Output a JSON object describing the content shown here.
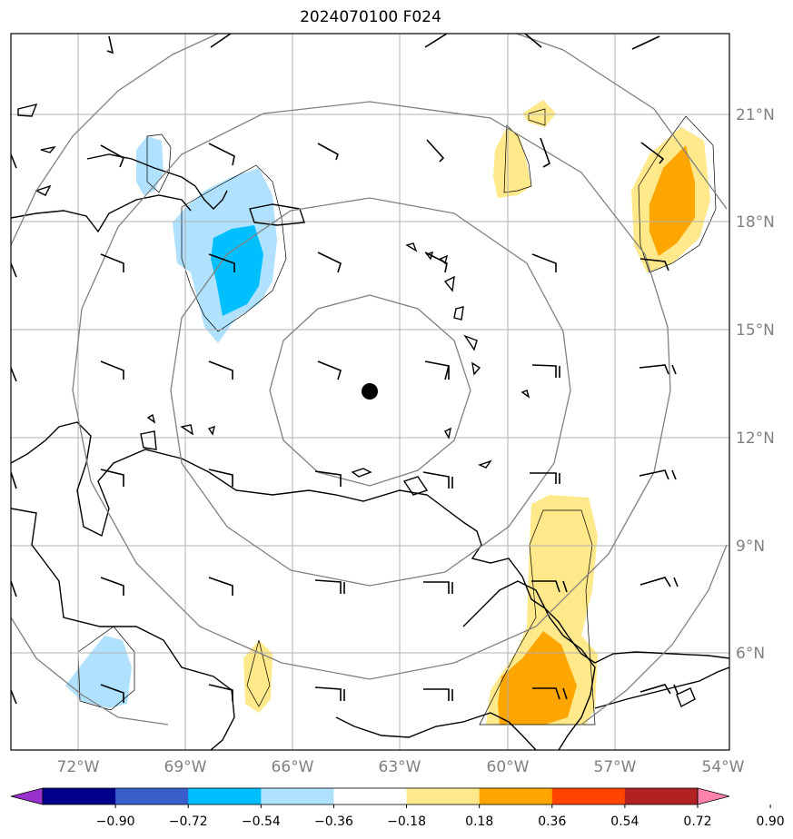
{
  "title": "2024070100 F024",
  "axes": {
    "lon_labels": [
      "72°W",
      "69°W",
      "66°W",
      "63°W",
      "60°W",
      "57°W",
      "54°W"
    ],
    "lat_labels": [
      "21°N",
      "18°N",
      "15°N",
      "12°N",
      "9°N",
      "6°N"
    ]
  },
  "colorbar": {
    "ticks": [
      "−0.90",
      "−0.72",
      "−0.54",
      "−0.36",
      "−0.18",
      "0.18",
      "0.36",
      "0.54",
      "0.72",
      "0.90"
    ],
    "colors": [
      "#9932cc",
      "#00008b",
      "#3a5fcd",
      "#00bfff",
      "#b0e2ff",
      "#ffffff",
      "#ffe98a",
      "#ffa500",
      "#ff4500",
      "#b22222",
      "#ff82ab"
    ]
  },
  "storm_center": {
    "lon": -63.6,
    "lat": 13.3
  },
  "colors": {
    "grid": "#b0b0b0",
    "rings": "#808080",
    "coast": "#000000",
    "label": "#808080"
  }
}
